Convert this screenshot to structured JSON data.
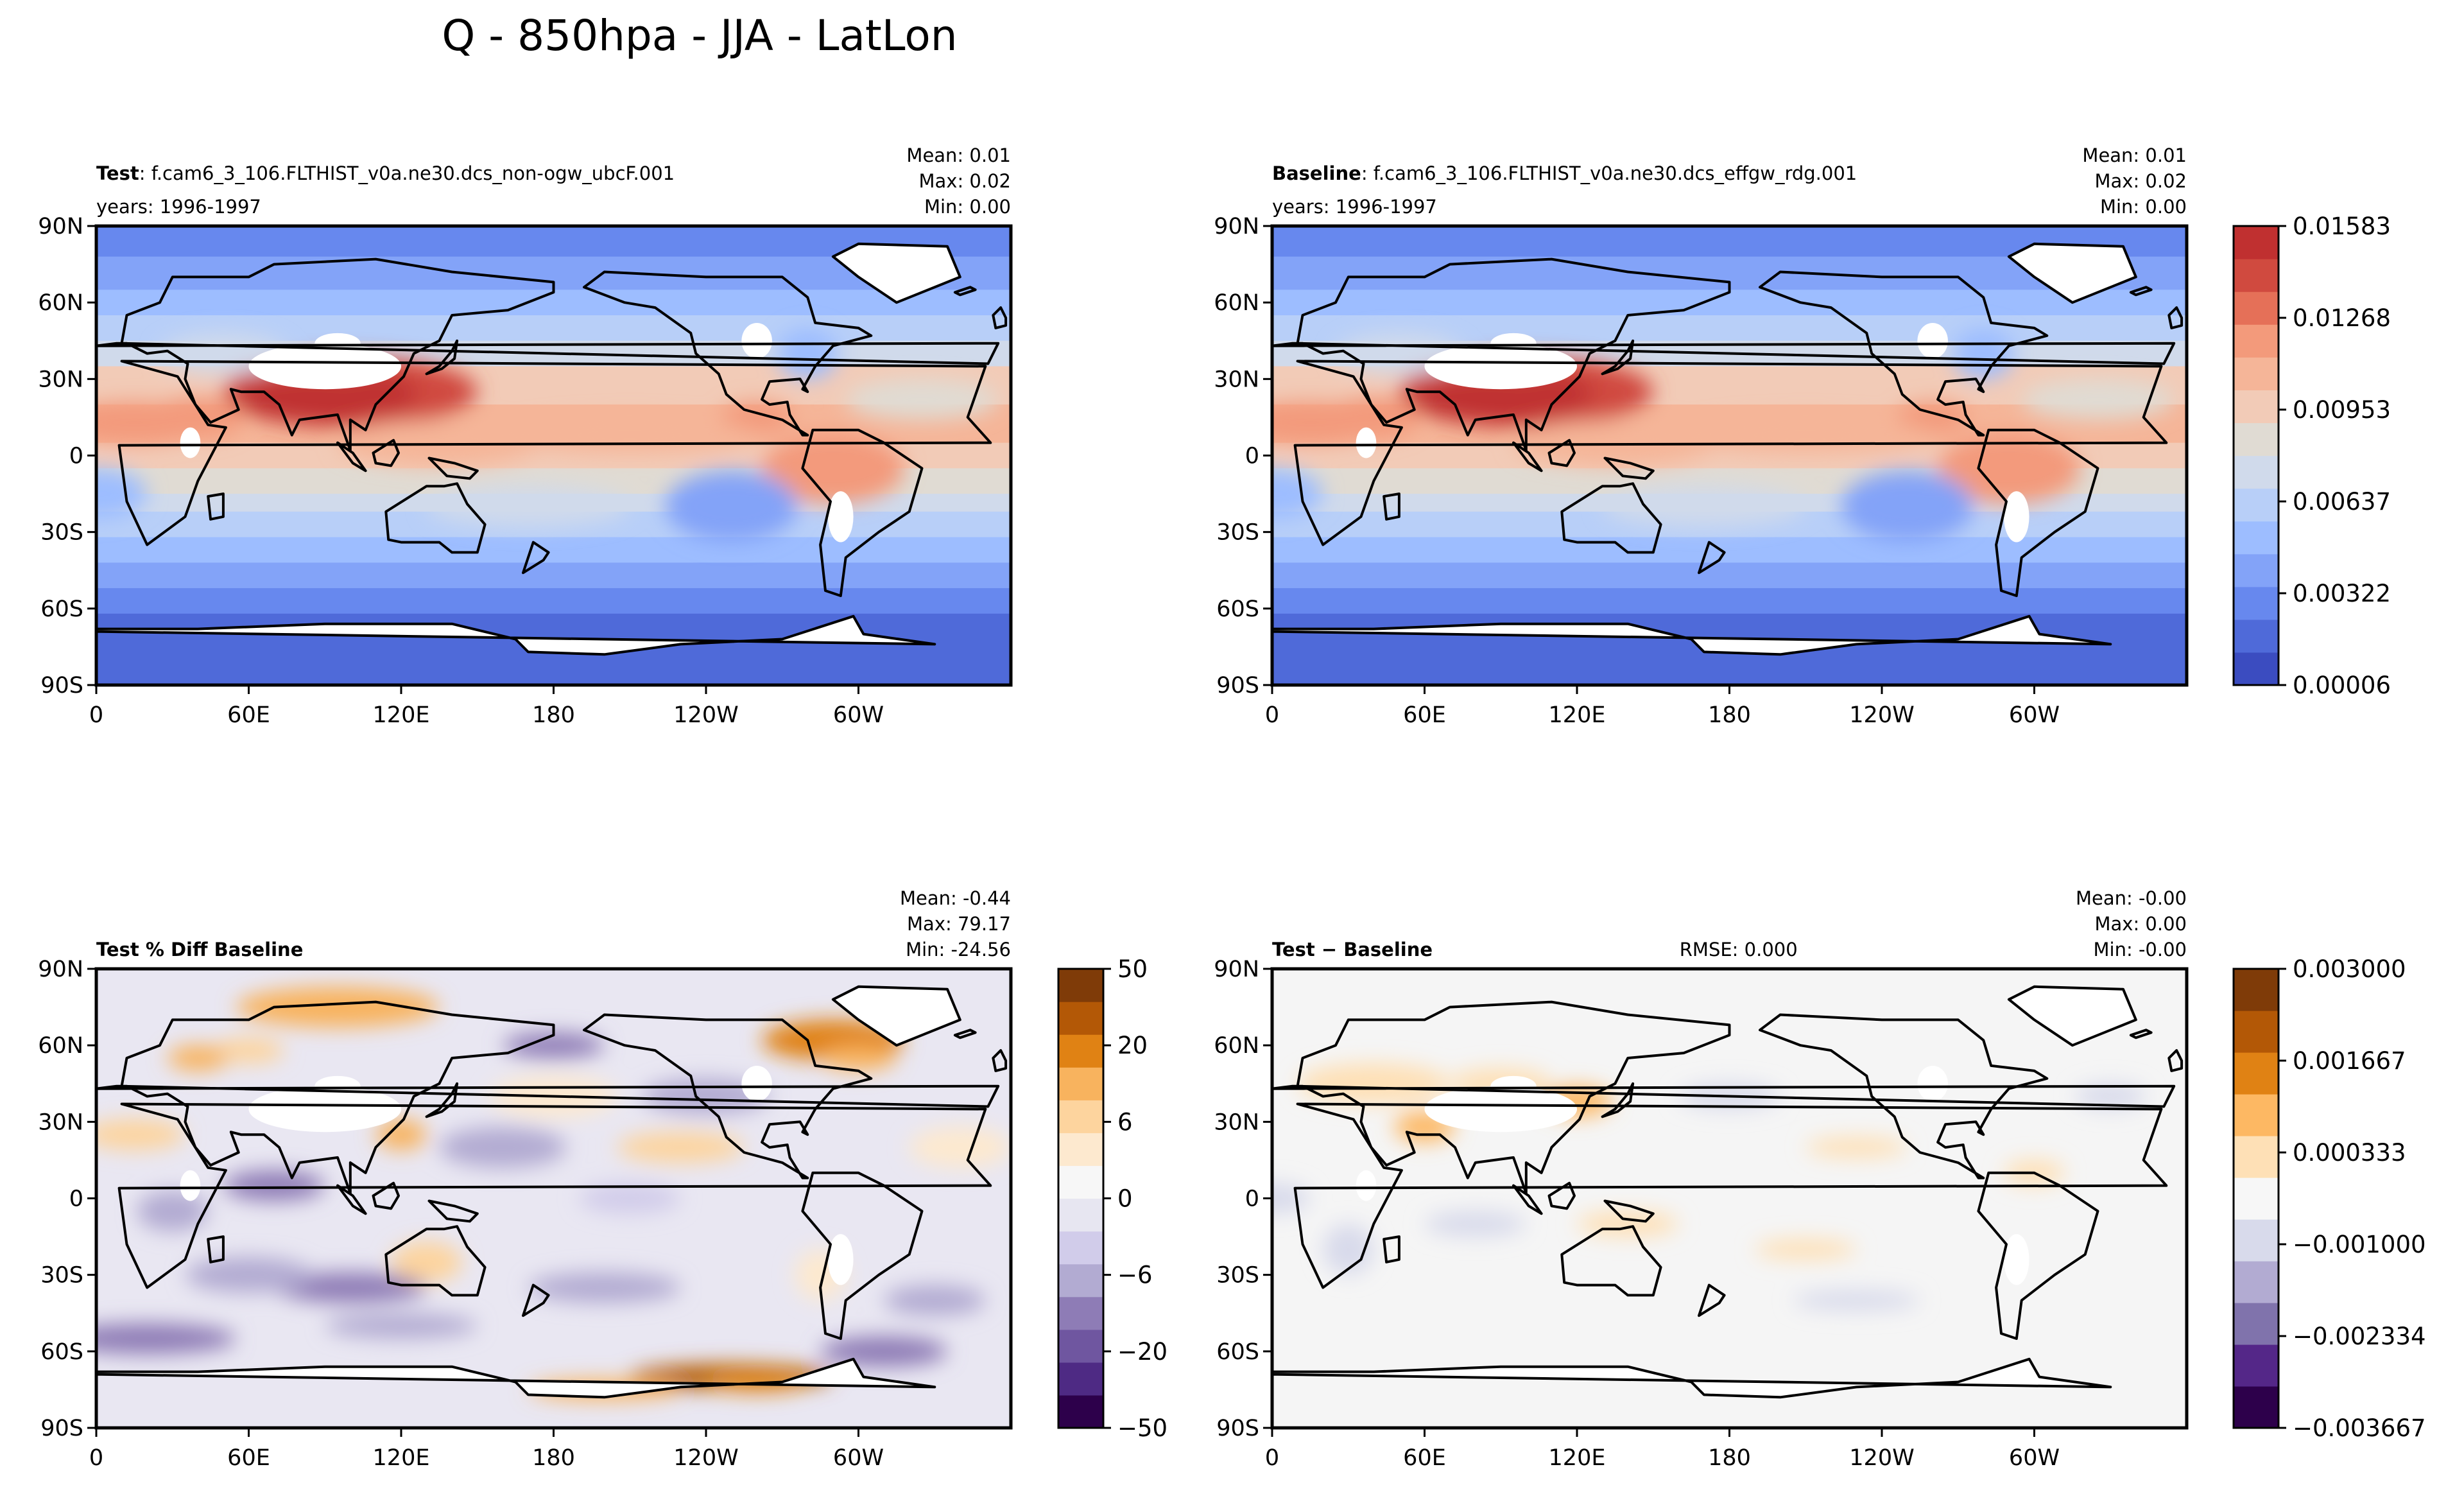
{
  "figure": {
    "title": "Q - 850hpa - JJA - LatLon"
  },
  "panels": [
    {
      "id": "test",
      "label_bold": "Test",
      "label_rest": ": f.cam6_3_106.FLTHIST_v0a.ne30.dcs_non-ogw_ubcF.001",
      "years": "years: 1996-1997",
      "stats": [
        "Mean:  0.01",
        "Max:  0.02",
        "Min:  0.00"
      ],
      "rmse": "",
      "palette": "warm",
      "has_colorbar": false
    },
    {
      "id": "baseline",
      "label_bold": "Baseline",
      "label_rest": ": f.cam6_3_106.FLTHIST_v0a.ne30.dcs_effgw_rdg.001",
      "years": "years: 1996-1997",
      "stats": [
        "Mean:  0.01",
        "Max:  0.02",
        "Min:  0.00"
      ],
      "rmse": "",
      "palette": "warm",
      "has_colorbar": true
    },
    {
      "id": "pctdiff",
      "label_bold": "Test % Diff Baseline",
      "label_rest": "",
      "years": "",
      "stats": [
        "Mean: -0.44",
        "Max: 79.17",
        "Min: -24.56"
      ],
      "rmse": "",
      "palette": "puor",
      "has_colorbar": true
    },
    {
      "id": "diff",
      "label_bold": "Test − Baseline",
      "label_rest": "",
      "years": "",
      "stats": [
        "Mean: -0.00",
        "Max:  0.00",
        "Min: -0.00"
      ],
      "rmse": "RMSE: 0.000",
      "palette": "puor_light",
      "has_colorbar": true
    }
  ],
  "axes": {
    "lat_ticks": [
      "90N",
      "60N",
      "30N",
      "0",
      "30S",
      "60S",
      "90S"
    ],
    "lon_ticks": [
      "0",
      "60E",
      "120E",
      "180",
      "120W",
      "60W"
    ]
  },
  "colorbars": {
    "field": {
      "labels": [
        "0.01583",
        "0.01268",
        "0.00953",
        "0.00637",
        "0.00322",
        "0.00006"
      ],
      "colors": [
        "#3b4cc0",
        "#4f6ad9",
        "#6788ee",
        "#83a3f8",
        "#9dbdff",
        "#b8cff8",
        "#d0daeb",
        "#e0dbd3",
        "#f2cbb7",
        "#f5b598",
        "#f39a7b",
        "#e57058",
        "#d04a3f",
        "#c03030"
      ]
    },
    "pct": {
      "labels": [
        "50",
        "20",
        "6",
        "0",
        "−6",
        "−20",
        "−50"
      ],
      "colors": [
        "#2d004b",
        "#4e2a84",
        "#6f56a0",
        "#8e7cb6",
        "#b2abd2",
        "#d1ccea",
        "#e7e6f1",
        "#f7f7f7",
        "#fde9cf",
        "#fdd49e",
        "#f8b35e",
        "#e08214",
        "#b35806",
        "#7f3b08"
      ]
    },
    "diff": {
      "labels": [
        "0.003000",
        "0.001667",
        "0.000333",
        "−0.001000",
        "−0.002334",
        "−0.003667"
      ],
      "colors": [
        "#2d004b",
        "#542788",
        "#8073ac",
        "#b2abd2",
        "#d8daeb",
        "#f7f7f7",
        "#fee0b6",
        "#fdb863",
        "#e08214",
        "#b35806",
        "#7f3b08"
      ]
    }
  },
  "chart_data": [
    {
      "type": "heatmap",
      "title": "Test: f.cam6_3_106.FLTHIST_v0a.ne30.dcs_non-ogw_ubcF.001",
      "xlabel": "",
      "ylabel": "",
      "x_ticks": [
        "0",
        "60E",
        "120E",
        "180",
        "120W",
        "60W"
      ],
      "y_ticks": [
        "90N",
        "60N",
        "30N",
        "0",
        "30S",
        "60S",
        "90S"
      ],
      "zlim": [
        6e-05,
        0.01741
      ],
      "stats": {
        "mean": 0.01,
        "max": 0.02,
        "min": 0.0
      },
      "zonal_profile_lat": [
        90,
        75,
        60,
        45,
        30,
        15,
        0,
        -15,
        -30,
        -45,
        -60,
        -75
      ],
      "zonal_profile_value": [
        0.0024,
        0.003,
        0.0046,
        0.0068,
        0.01,
        0.012,
        0.0115,
        0.0098,
        0.007,
        0.0046,
        0.003,
        0.0022
      ]
    },
    {
      "type": "heatmap",
      "title": "Baseline: f.cam6_3_106.FLTHIST_v0a.ne30.dcs_effgw_rdg.001",
      "xlabel": "",
      "ylabel": "",
      "x_ticks": [
        "0",
        "60E",
        "120E",
        "180",
        "120W",
        "60W"
      ],
      "y_ticks": [
        "90N",
        "60N",
        "30N",
        "0",
        "30S",
        "60S",
        "90S"
      ],
      "zlim": [
        6e-05,
        0.01741
      ],
      "stats": {
        "mean": 0.01,
        "max": 0.02,
        "min": 0.0
      },
      "zonal_profile_lat": [
        90,
        75,
        60,
        45,
        30,
        15,
        0,
        -15,
        -30,
        -45,
        -60,
        -75
      ],
      "zonal_profile_value": [
        0.0024,
        0.003,
        0.0046,
        0.0068,
        0.01,
        0.012,
        0.0115,
        0.0098,
        0.007,
        0.0046,
        0.003,
        0.0022
      ]
    },
    {
      "type": "heatmap",
      "title": "Test % Diff Baseline",
      "xlabel": "",
      "ylabel": "",
      "x_ticks": [
        "0",
        "60E",
        "120E",
        "180",
        "120W",
        "60W"
      ],
      "y_ticks": [
        "90N",
        "60N",
        "30N",
        "0",
        "30S",
        "60S",
        "90S"
      ],
      "levels": [
        -50,
        -20,
        -6,
        0,
        6,
        20,
        50
      ],
      "stats": {
        "mean": -0.44,
        "max": 79.17,
        "min": -24.56
      }
    },
    {
      "type": "heatmap",
      "title": "Test − Baseline",
      "xlabel": "",
      "ylabel": "",
      "x_ticks": [
        "0",
        "60E",
        "120E",
        "180",
        "120W",
        "60W"
      ],
      "y_ticks": [
        "90N",
        "60N",
        "30N",
        "0",
        "30S",
        "60S",
        "90S"
      ],
      "levels": [
        -0.003667,
        -0.002334,
        -0.001,
        0.000333,
        0.001667,
        0.003
      ],
      "stats": {
        "mean": -0.0,
        "max": 0.0,
        "min": -0.0
      },
      "rmse": 0.0
    }
  ]
}
